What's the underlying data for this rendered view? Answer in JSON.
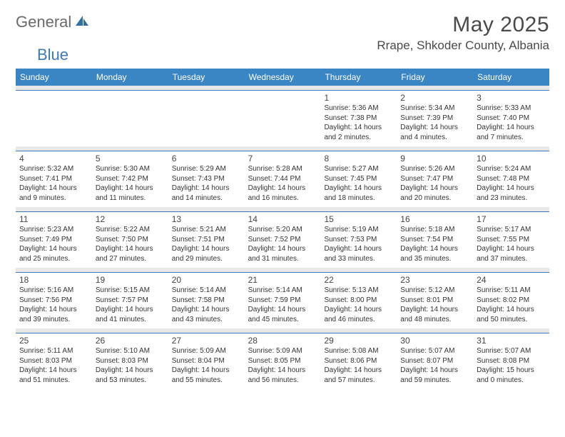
{
  "logo": {
    "part1": "General",
    "part2": "Blue"
  },
  "title": "May 2025",
  "subtitle": "Rrape, Shkoder County, Albania",
  "dayNames": [
    "Sunday",
    "Monday",
    "Tuesday",
    "Wednesday",
    "Thursday",
    "Friday",
    "Saturday"
  ],
  "colors": {
    "headerBar": "#3a85c4",
    "weekDivider": "#3a7ab8",
    "gapBg": "#e8e8e8",
    "textGray": "#4a4a4a"
  },
  "weeks": [
    [
      null,
      null,
      null,
      null,
      {
        "n": "1",
        "sr": "5:36 AM",
        "ss": "7:38 PM",
        "dl": "14 hours and 2 minutes."
      },
      {
        "n": "2",
        "sr": "5:34 AM",
        "ss": "7:39 PM",
        "dl": "14 hours and 4 minutes."
      },
      {
        "n": "3",
        "sr": "5:33 AM",
        "ss": "7:40 PM",
        "dl": "14 hours and 7 minutes."
      }
    ],
    [
      {
        "n": "4",
        "sr": "5:32 AM",
        "ss": "7:41 PM",
        "dl": "14 hours and 9 minutes."
      },
      {
        "n": "5",
        "sr": "5:30 AM",
        "ss": "7:42 PM",
        "dl": "14 hours and 11 minutes."
      },
      {
        "n": "6",
        "sr": "5:29 AM",
        "ss": "7:43 PM",
        "dl": "14 hours and 14 minutes."
      },
      {
        "n": "7",
        "sr": "5:28 AM",
        "ss": "7:44 PM",
        "dl": "14 hours and 16 minutes."
      },
      {
        "n": "8",
        "sr": "5:27 AM",
        "ss": "7:45 PM",
        "dl": "14 hours and 18 minutes."
      },
      {
        "n": "9",
        "sr": "5:26 AM",
        "ss": "7:47 PM",
        "dl": "14 hours and 20 minutes."
      },
      {
        "n": "10",
        "sr": "5:24 AM",
        "ss": "7:48 PM",
        "dl": "14 hours and 23 minutes."
      }
    ],
    [
      {
        "n": "11",
        "sr": "5:23 AM",
        "ss": "7:49 PM",
        "dl": "14 hours and 25 minutes."
      },
      {
        "n": "12",
        "sr": "5:22 AM",
        "ss": "7:50 PM",
        "dl": "14 hours and 27 minutes."
      },
      {
        "n": "13",
        "sr": "5:21 AM",
        "ss": "7:51 PM",
        "dl": "14 hours and 29 minutes."
      },
      {
        "n": "14",
        "sr": "5:20 AM",
        "ss": "7:52 PM",
        "dl": "14 hours and 31 minutes."
      },
      {
        "n": "15",
        "sr": "5:19 AM",
        "ss": "7:53 PM",
        "dl": "14 hours and 33 minutes."
      },
      {
        "n": "16",
        "sr": "5:18 AM",
        "ss": "7:54 PM",
        "dl": "14 hours and 35 minutes."
      },
      {
        "n": "17",
        "sr": "5:17 AM",
        "ss": "7:55 PM",
        "dl": "14 hours and 37 minutes."
      }
    ],
    [
      {
        "n": "18",
        "sr": "5:16 AM",
        "ss": "7:56 PM",
        "dl": "14 hours and 39 minutes."
      },
      {
        "n": "19",
        "sr": "5:15 AM",
        "ss": "7:57 PM",
        "dl": "14 hours and 41 minutes."
      },
      {
        "n": "20",
        "sr": "5:14 AM",
        "ss": "7:58 PM",
        "dl": "14 hours and 43 minutes."
      },
      {
        "n": "21",
        "sr": "5:14 AM",
        "ss": "7:59 PM",
        "dl": "14 hours and 45 minutes."
      },
      {
        "n": "22",
        "sr": "5:13 AM",
        "ss": "8:00 PM",
        "dl": "14 hours and 46 minutes."
      },
      {
        "n": "23",
        "sr": "5:12 AM",
        "ss": "8:01 PM",
        "dl": "14 hours and 48 minutes."
      },
      {
        "n": "24",
        "sr": "5:11 AM",
        "ss": "8:02 PM",
        "dl": "14 hours and 50 minutes."
      }
    ],
    [
      {
        "n": "25",
        "sr": "5:11 AM",
        "ss": "8:03 PM",
        "dl": "14 hours and 51 minutes."
      },
      {
        "n": "26",
        "sr": "5:10 AM",
        "ss": "8:03 PM",
        "dl": "14 hours and 53 minutes."
      },
      {
        "n": "27",
        "sr": "5:09 AM",
        "ss": "8:04 PM",
        "dl": "14 hours and 55 minutes."
      },
      {
        "n": "28",
        "sr": "5:09 AM",
        "ss": "8:05 PM",
        "dl": "14 hours and 56 minutes."
      },
      {
        "n": "29",
        "sr": "5:08 AM",
        "ss": "8:06 PM",
        "dl": "14 hours and 57 minutes."
      },
      {
        "n": "30",
        "sr": "5:07 AM",
        "ss": "8:07 PM",
        "dl": "14 hours and 59 minutes."
      },
      {
        "n": "31",
        "sr": "5:07 AM",
        "ss": "8:08 PM",
        "dl": "15 hours and 0 minutes."
      }
    ]
  ],
  "labels": {
    "sunrise": "Sunrise: ",
    "sunset": "Sunset: ",
    "daylight": "Daylight: "
  }
}
